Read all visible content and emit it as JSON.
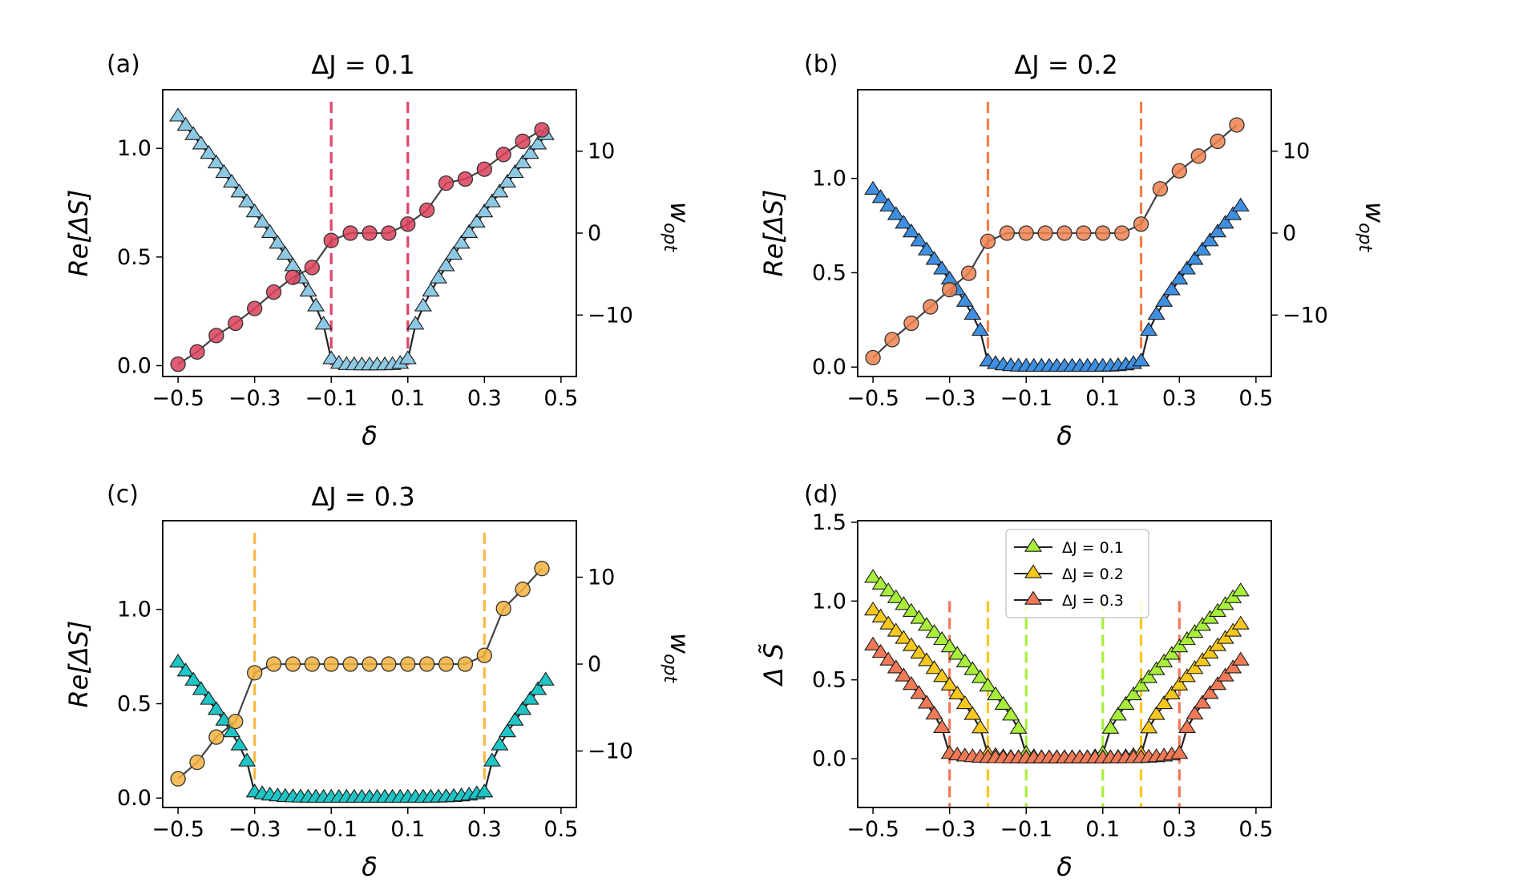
{
  "chart_data": [
    {
      "type": "scatter",
      "panel_label": "(a)",
      "title": "ΔJ = 0.1",
      "xlabel": "δ",
      "ylabel": "Re[ΔS]",
      "y2label": "w_opt",
      "xlim": [
        -0.54,
        0.54
      ],
      "ylim": [
        -0.05,
        1.27
      ],
      "y2lim": [
        -17.5,
        17.5
      ],
      "x_ticks": [
        -0.5,
        -0.3,
        -0.1,
        0.1,
        0.3,
        0.5
      ],
      "x_tick_labels": [
        "−0.5",
        "−0.3",
        "−0.1",
        "0.1",
        "0.3",
        "0.5"
      ],
      "y_ticks": [
        0.0,
        0.5,
        1.0
      ],
      "y_tick_labels": [
        "0.0",
        "0.5",
        "1.0"
      ],
      "y2_ticks": [
        10,
        0,
        -10
      ],
      "y2_tick_labels": [
        "10",
        "0",
        "−10"
      ],
      "vlines": [
        -0.1,
        0.1
      ],
      "vline_color": "#e0456a",
      "colors": {
        "triangle": "#8ec9e4",
        "circle": "#d9405a"
      },
      "series": [
        {
          "kind": "triangle",
          "axis": "left",
          "dJ": 0.1
        },
        {
          "kind": "circle",
          "axis": "right",
          "x": [
            -0.5,
            -0.45,
            -0.4,
            -0.35,
            -0.3,
            -0.25,
            -0.2,
            -0.15,
            -0.1,
            -0.05,
            0.0,
            0.05,
            0.1,
            0.15,
            0.2,
            0.25,
            0.3,
            0.35,
            0.4,
            0.45
          ],
          "y": [
            -16.0,
            -14.5,
            -12.5,
            -11.0,
            -9.2,
            -7.2,
            -5.4,
            -4.2,
            -0.9,
            0.0,
            0.0,
            0.0,
            1.1,
            2.8,
            6.1,
            6.6,
            7.8,
            9.6,
            11.2,
            12.6
          ]
        }
      ]
    },
    {
      "type": "scatter",
      "panel_label": "(b)",
      "title": "ΔJ = 0.2",
      "xlabel": "δ",
      "ylabel": "Re[ΔS]",
      "y2label": "w_opt",
      "xlim": [
        -0.54,
        0.54
      ],
      "ylim": [
        -0.05,
        1.47
      ],
      "y2lim": [
        -17.5,
        17.5
      ],
      "x_ticks": [
        -0.5,
        -0.3,
        -0.1,
        0.1,
        0.3,
        0.5
      ],
      "x_tick_labels": [
        "−0.5",
        "−0.3",
        "−0.1",
        "0.1",
        "0.3",
        "0.5"
      ],
      "y_ticks": [
        0.0,
        0.5,
        1.0
      ],
      "y_tick_labels": [
        "0.0",
        "0.5",
        "1.0"
      ],
      "y2_ticks": [
        10,
        0,
        -10
      ],
      "y2_tick_labels": [
        "10",
        "0",
        "−10"
      ],
      "vlines": [
        -0.2,
        0.2
      ],
      "vline_color": "#f27f4b",
      "colors": {
        "triangle": "#3f8fe0",
        "circle": "#ef8150"
      },
      "series": [
        {
          "kind": "triangle",
          "axis": "left",
          "dJ": 0.2
        },
        {
          "kind": "circle",
          "axis": "right",
          "x": [
            -0.5,
            -0.45,
            -0.4,
            -0.35,
            -0.3,
            -0.25,
            -0.2,
            -0.15,
            -0.1,
            -0.05,
            0.0,
            0.05,
            0.1,
            0.15,
            0.2,
            0.25,
            0.3,
            0.35,
            0.4,
            0.45
          ],
          "y": [
            -15.2,
            -13.0,
            -11.0,
            -9.0,
            -6.9,
            -4.9,
            -1.0,
            0.0,
            0.0,
            0.0,
            0.0,
            0.0,
            0.0,
            0.0,
            1.1,
            5.4,
            7.6,
            9.4,
            11.2,
            13.2
          ]
        }
      ]
    },
    {
      "type": "scatter",
      "panel_label": "(c)",
      "title": "ΔJ = 0.3",
      "xlabel": "δ",
      "ylabel": "Re[ΔS]",
      "y2label": "w_opt",
      "xlim": [
        -0.54,
        0.54
      ],
      "ylim": [
        -0.05,
        1.47
      ],
      "y2lim": [
        -16.5,
        16.5
      ],
      "x_ticks": [
        -0.5,
        -0.3,
        -0.1,
        0.1,
        0.3,
        0.5
      ],
      "x_tick_labels": [
        "−0.5",
        "−0.3",
        "−0.1",
        "0.1",
        "0.3",
        "0.5"
      ],
      "y_ticks": [
        0.0,
        0.5,
        1.0
      ],
      "y_tick_labels": [
        "0.0",
        "0.5",
        "1.0"
      ],
      "y2_ticks": [
        10,
        0,
        -10
      ],
      "y2_tick_labels": [
        "10",
        "0",
        "−10"
      ],
      "vlines": [
        -0.3,
        0.3
      ],
      "vline_color": "#f7b944",
      "colors": {
        "triangle": "#1fc4c4",
        "circle": "#f4b13e"
      },
      "series": [
        {
          "kind": "triangle",
          "axis": "left",
          "dJ": 0.3
        },
        {
          "kind": "circle",
          "axis": "right",
          "x": [
            -0.5,
            -0.45,
            -0.4,
            -0.35,
            -0.3,
            -0.25,
            -0.2,
            -0.15,
            -0.1,
            -0.05,
            0.0,
            0.05,
            0.1,
            0.15,
            0.2,
            0.25,
            0.3,
            0.35,
            0.4,
            0.45
          ],
          "y": [
            -13.2,
            -11.3,
            -8.4,
            -6.6,
            -1.0,
            0.0,
            0.0,
            0.0,
            0.0,
            0.0,
            0.0,
            0.0,
            0.0,
            0.0,
            0.0,
            0.0,
            1.0,
            6.4,
            8.6,
            11.0
          ]
        }
      ]
    },
    {
      "type": "line",
      "panel_label": "(d)",
      "title": "",
      "xlabel": "δ",
      "ylabel": "Δ S̃",
      "xlim": [
        -0.54,
        0.54
      ],
      "ylim": [
        -0.31,
        1.51
      ],
      "x_ticks": [
        -0.5,
        -0.3,
        -0.1,
        0.1,
        0.3,
        0.5
      ],
      "x_tick_labels": [
        "−0.5",
        "−0.3",
        "−0.1",
        "0.1",
        "0.3",
        "0.5"
      ],
      "y_ticks": [
        0.0,
        0.5,
        1.0,
        1.5
      ],
      "y_tick_labels": [
        "0.0",
        "0.5",
        "1.0",
        "1.5"
      ],
      "legend": {
        "placement": "top-center",
        "entries": [
          "ΔJ = 0.1",
          "ΔJ = 0.2",
          "ΔJ = 0.3"
        ]
      },
      "series": [
        {
          "name": "ΔJ = 0.1",
          "dJ": 0.1,
          "color": "#a8ee3a",
          "vline_color": "#a8ee3a"
        },
        {
          "name": "ΔJ = 0.2",
          "dJ": 0.2,
          "color": "#f6c81e",
          "vline_color": "#f6c81e"
        },
        {
          "name": "ΔJ = 0.3",
          "dJ": 0.3,
          "color": "#f07a58",
          "vline_color": "#f07a58"
        }
      ]
    }
  ]
}
